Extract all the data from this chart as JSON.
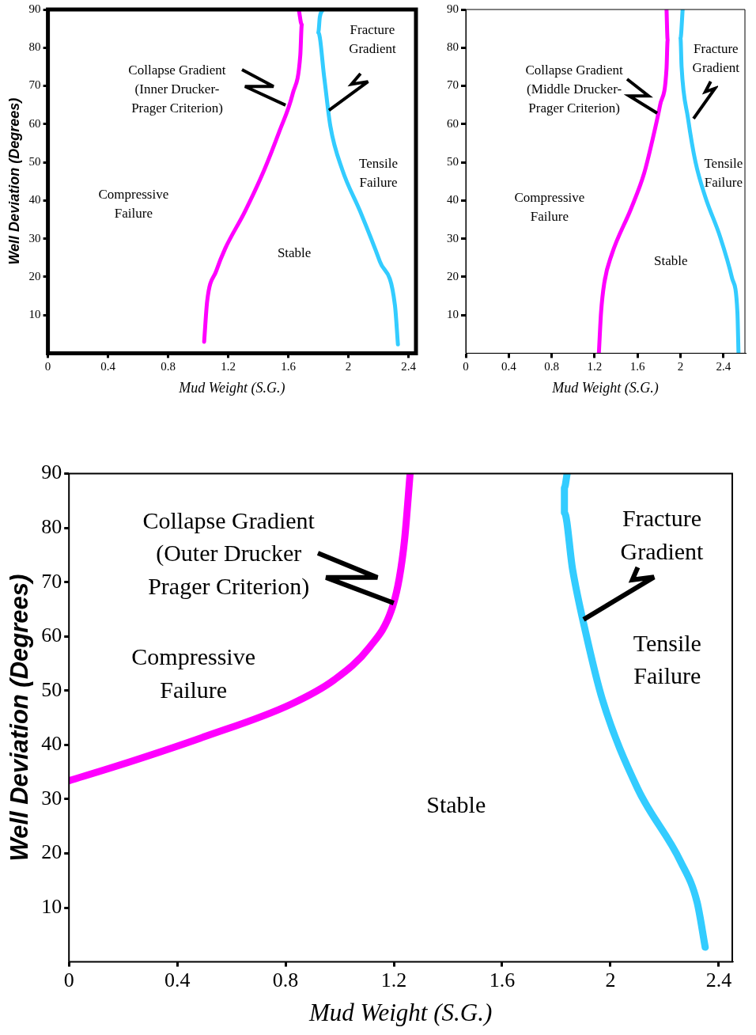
{
  "chart_data": [
    {
      "type": "line",
      "xlabel": "Mud Weight (S.G.)",
      "ylabel": "Well Deviation (Degrees)",
      "xlim": [
        0,
        2.45
      ],
      "ylim": [
        0,
        90
      ],
      "xticks": [
        0,
        0.4,
        0.8,
        1.2,
        1.6,
        2.0,
        2.4
      ],
      "yticks": [
        10,
        20,
        30,
        40,
        50,
        60,
        70,
        80,
        90
      ],
      "grid": false,
      "legend": false,
      "marker": "none",
      "line_style": "solid",
      "series": [
        {
          "color": "#ff00ff",
          "x": [
            1.04,
            1.06,
            1.12,
            1.18,
            1.31,
            1.44,
            1.54,
            1.63,
            1.68,
            1.69,
            1.67
          ],
          "values": [
            3,
            13.6,
            21.5,
            27.4,
            37,
            48,
            58,
            68,
            78,
            86,
            90
          ]
        },
        {
          "color": "#33ccff",
          "x": [
            2.33,
            2.31,
            2.21,
            2.08,
            1.96,
            1.88,
            1.84,
            1.8,
            1.81,
            1.83
          ],
          "values": [
            2.3,
            12.6,
            24,
            37,
            48,
            59.5,
            72,
            84,
            88,
            90
          ]
        }
      ],
      "annotations": [
        {
          "text": "Collapse Gradient\n(Inner Drucker-\nPrager Criterion)",
          "x": 1.58,
          "y": 64.9
        },
        {
          "text": "Fracture\nGradient",
          "x": 1.87,
          "y": 63.7
        },
        "Compressive\nFailure",
        "Tensile\nFailure",
        "Stable"
      ]
    },
    {
      "type": "line",
      "xlabel": "Mud Weight (S.G.)",
      "xlim": [
        0,
        2.6
      ],
      "ylim": [
        0,
        90
      ],
      "xticks": [
        0,
        0.4,
        0.8,
        1.2,
        1.6,
        2.0,
        2.4
      ],
      "yticks": [
        10,
        20,
        30,
        40,
        50,
        60,
        70,
        80,
        90
      ],
      "grid": false,
      "legend": false,
      "marker": "none",
      "line_style": "solid",
      "series": [
        {
          "color": "#ff00ff",
          "x": [
            1.24,
            1.26,
            1.29,
            1.36,
            1.54,
            1.66,
            1.74,
            1.81,
            1.87,
            1.88,
            1.87
          ],
          "values": [
            0.2,
            10.7,
            18.4,
            25.9,
            37.9,
            47,
            56,
            65,
            74.6,
            82,
            90
          ]
        },
        {
          "color": "#33ccff",
          "x": [
            2.54,
            2.53,
            2.48,
            2.37,
            2.23,
            2.14,
            2.07,
            2.01,
            2.0,
            2.02
          ],
          "values": [
            0.2,
            10.7,
            19.7,
            30.4,
            41,
            50,
            61.5,
            75,
            82.5,
            90
          ]
        }
      ],
      "annotations": [
        {
          "text": "Collapse Gradient\n(Middle Drucker-\nPrager Criterion)",
          "x": 1.78,
          "y": 62.8
        },
        {
          "text": "Fracture\nGradient",
          "x": 2.12,
          "y": 61.5
        },
        "Compressive\nFailure",
        "Tensile\nFailure",
        "Stable"
      ]
    },
    {
      "type": "line",
      "xlabel": "Mud Weight (S.G.)",
      "ylabel": "Well Deviation (Degrees)",
      "xlim": [
        0,
        2.45
      ],
      "ylim": [
        0,
        90
      ],
      "xticks": [
        0,
        0.4,
        0.8,
        1.2,
        1.6,
        2.0,
        2.4
      ],
      "yticks": [
        10,
        20,
        30,
        40,
        50,
        60,
        70,
        80,
        90
      ],
      "grid": false,
      "legend": false,
      "marker": "none",
      "line_style": "solid",
      "series": [
        {
          "color": "#ff00ff",
          "x": [
            0,
            0.17,
            0.5,
            0.82,
            0.98,
            1.11,
            1.19,
            1.22,
            1.24,
            1.26
          ],
          "values": [
            33.4,
            36,
            41.5,
            47.5,
            52,
            58,
            64.7,
            70.7,
            78,
            90
          ]
        },
        {
          "color": "#33ccff",
          "x": [
            2.35,
            2.32,
            2.26,
            2.1,
            1.97,
            1.91,
            1.86,
            1.83,
            1.83,
            1.84
          ],
          "values": [
            2.7,
            11,
            18.4,
            32,
            48.4,
            60.4,
            72.4,
            82.8,
            87.4,
            90
          ]
        }
      ],
      "annotations": [
        {
          "text": "Collapse Gradient\n(Outer Drucker\nPrager Criterion)",
          "x": 1.2,
          "y": 66.2
        },
        {
          "text": "Fracture\nGradient",
          "x": 1.9,
          "y": 63.1
        },
        "Compressive\nFailure",
        "Tensile\nFailure",
        "Stable"
      ]
    }
  ]
}
